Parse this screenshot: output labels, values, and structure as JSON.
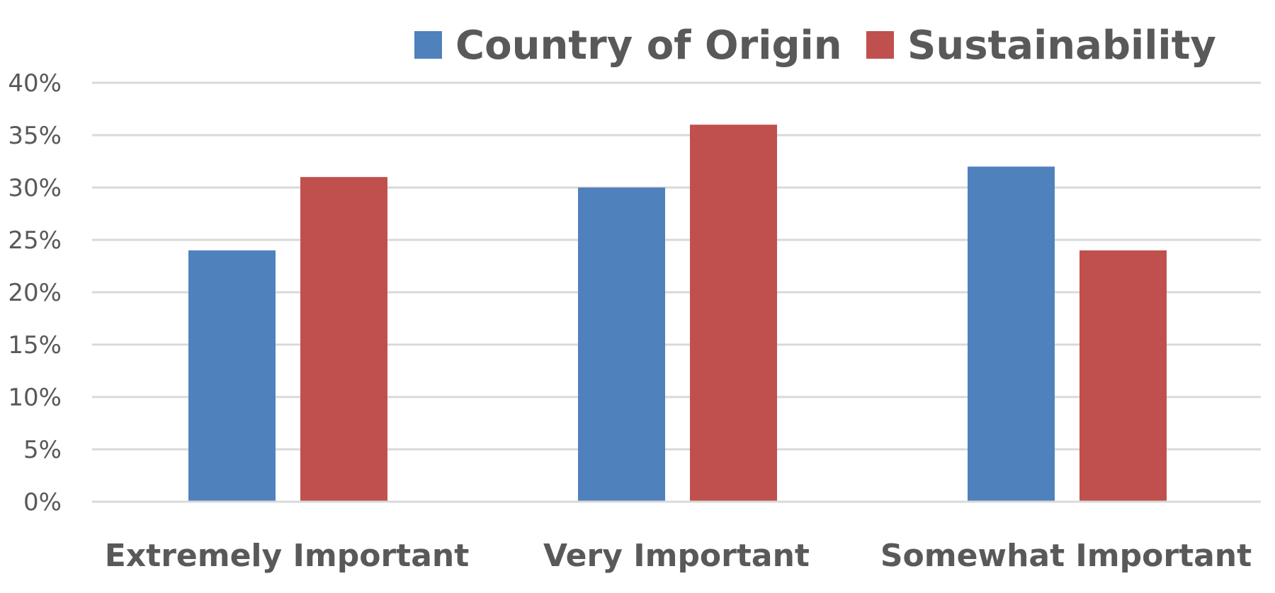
{
  "chart_data": {
    "type": "bar",
    "title": "",
    "xlabel": "",
    "ylabel": "",
    "categories": [
      "Extremely Important",
      "Very Important",
      "Somewhat Important"
    ],
    "series": [
      {
        "name": "Country of Origin",
        "color": "#4F81BD",
        "values": [
          24,
          30,
          32
        ]
      },
      {
        "name": "Sustainability",
        "color": "#C0504D",
        "values": [
          31,
          36,
          24
        ]
      }
    ],
    "ylim": [
      0,
      40
    ],
    "yticks": [
      "0%",
      "5%",
      "10%",
      "15%",
      "20%",
      "25%",
      "30%",
      "35%",
      "40%"
    ],
    "grid": true,
    "legend": "top",
    "gridColor": "#D9D9D9",
    "textColor": "#595959"
  }
}
